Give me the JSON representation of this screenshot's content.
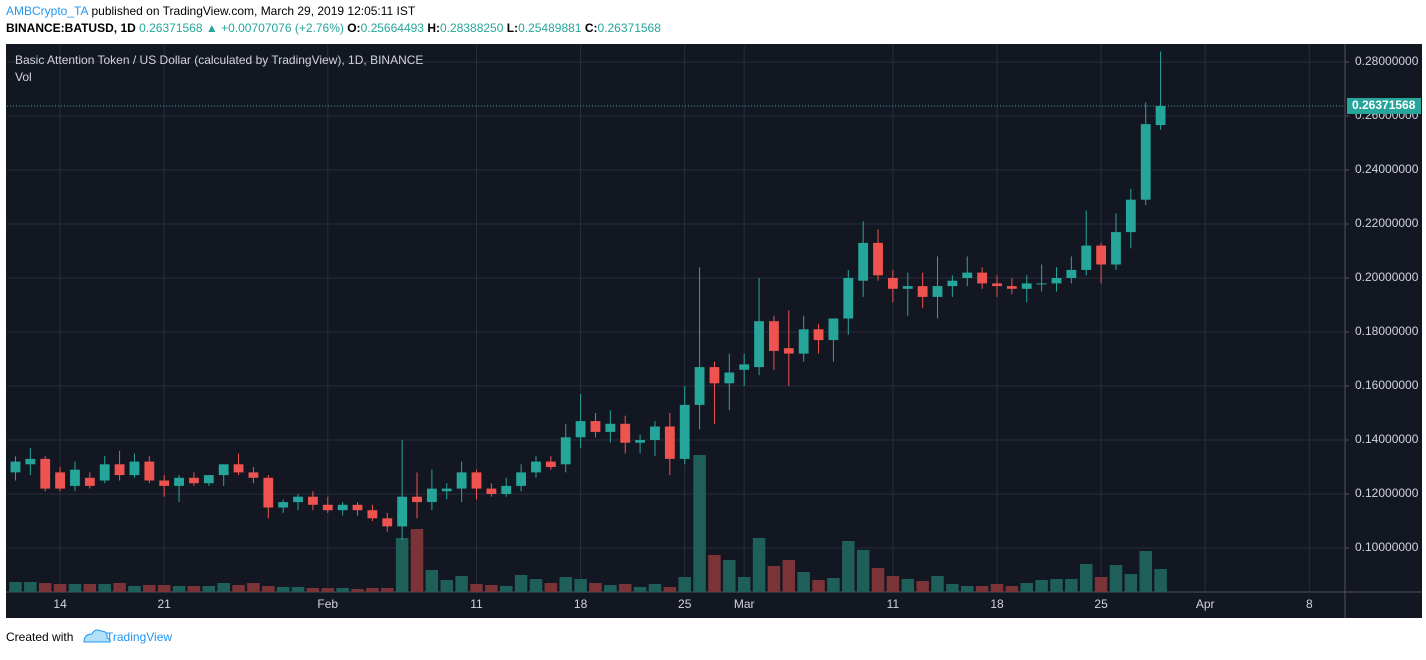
{
  "header": {
    "author": "AMBCrypto_TA",
    "published": "published on TradingView.com, March 29, 2019 12:05:11 IST",
    "symbol": "BINANCE:BATUSD, 1D",
    "price": "0.26371568",
    "arrow": "▲",
    "change": "+0.00707076 (+2.76%)",
    "o_label": "O:",
    "o": "0.25664493",
    "h_label": "H:",
    "h": "0.28388250",
    "l_label": "L:",
    "l": "0.25489881",
    "c_label": "C:",
    "c": "0.26371568"
  },
  "footer": {
    "created": "Created with",
    "brand": "TradingView"
  },
  "chart_data": {
    "type": "candlestick",
    "title": "Basic Attention Token / US Dollar (calculated by TradingView), 1D, BINANCE",
    "volume_label": "Vol",
    "open": [
      0.128,
      0.131,
      0.133,
      0.128,
      0.123,
      0.126,
      0.125,
      0.131,
      0.127,
      0.132,
      0.125,
      0.123,
      0.126,
      0.124,
      0.127,
      0.131,
      0.128,
      0.126,
      0.115,
      0.117,
      0.119,
      0.116,
      0.114,
      0.116,
      0.114,
      0.111,
      0.108,
      0.119,
      0.117,
      0.121,
      0.122,
      0.128,
      0.122,
      0.12,
      0.123,
      0.128,
      0.132,
      0.131,
      0.141,
      0.147,
      0.143,
      0.146,
      0.139,
      0.14,
      0.145,
      0.133,
      0.153,
      0.167,
      0.161,
      0.166,
      0.167,
      0.184,
      0.174,
      0.172,
      0.181,
      0.177,
      0.185,
      0.199,
      0.213,
      0.2,
      0.196,
      0.197,
      0.193,
      0.197,
      0.2,
      0.202,
      0.198,
      0.197,
      0.196,
      0.198,
      0.198,
      0.2,
      0.203,
      0.212,
      0.205,
      0.217,
      0.229,
      0.25664493
    ],
    "high": [
      0.134,
      0.137,
      0.134,
      0.13,
      0.132,
      0.128,
      0.134,
      0.136,
      0.135,
      0.134,
      0.127,
      0.127,
      0.128,
      0.127,
      0.131,
      0.135,
      0.13,
      0.127,
      0.118,
      0.12,
      0.121,
      0.119,
      0.117,
      0.117,
      0.116,
      0.113,
      0.14,
      0.128,
      0.129,
      0.124,
      0.132,
      0.129,
      0.124,
      0.126,
      0.131,
      0.134,
      0.134,
      0.146,
      0.157,
      0.15,
      0.151,
      0.149,
      0.142,
      0.147,
      0.15,
      0.16,
      0.204,
      0.169,
      0.172,
      0.172,
      0.2,
      0.186,
      0.188,
      0.186,
      0.183,
      0.183,
      0.203,
      0.221,
      0.218,
      0.203,
      0.202,
      0.202,
      0.208,
      0.201,
      0.208,
      0.204,
      0.201,
      0.2,
      0.201,
      0.205,
      0.204,
      0.208,
      0.225,
      0.213,
      0.224,
      0.233,
      0.265,
      0.2838825
    ],
    "low": [
      0.125,
      0.127,
      0.121,
      0.121,
      0.121,
      0.122,
      0.124,
      0.125,
      0.126,
      0.124,
      0.119,
      0.117,
      0.123,
      0.123,
      0.123,
      0.127,
      0.124,
      0.111,
      0.113,
      0.114,
      0.114,
      0.113,
      0.112,
      0.112,
      0.11,
      0.106,
      0.103,
      0.111,
      0.114,
      0.118,
      0.117,
      0.118,
      0.119,
      0.119,
      0.121,
      0.126,
      0.129,
      0.128,
      0.137,
      0.141,
      0.139,
      0.135,
      0.135,
      0.134,
      0.127,
      0.131,
      0.144,
      0.146,
      0.151,
      0.16,
      0.164,
      0.166,
      0.16,
      0.169,
      0.172,
      0.169,
      0.179,
      0.193,
      0.199,
      0.191,
      0.186,
      0.189,
      0.185,
      0.193,
      0.197,
      0.196,
      0.193,
      0.194,
      0.191,
      0.195,
      0.195,
      0.198,
      0.201,
      0.198,
      0.203,
      0.211,
      0.227,
      0.25489881
    ],
    "close": [
      0.132,
      0.133,
      0.122,
      0.122,
      0.129,
      0.123,
      0.131,
      0.127,
      0.132,
      0.125,
      0.123,
      0.126,
      0.124,
      0.127,
      0.131,
      0.128,
      0.126,
      0.115,
      0.117,
      0.119,
      0.116,
      0.114,
      0.116,
      0.114,
      0.111,
      0.108,
      0.119,
      0.117,
      0.122,
      0.122,
      0.128,
      0.122,
      0.12,
      0.123,
      0.128,
      0.132,
      0.13,
      0.141,
      0.147,
      0.143,
      0.146,
      0.139,
      0.14,
      0.145,
      0.133,
      0.153,
      0.167,
      0.161,
      0.165,
      0.168,
      0.184,
      0.173,
      0.172,
      0.181,
      0.177,
      0.185,
      0.2,
      0.213,
      0.201,
      0.196,
      0.197,
      0.193,
      0.197,
      0.199,
      0.202,
      0.198,
      0.197,
      0.196,
      0.198,
      0.198,
      0.2,
      0.203,
      0.212,
      0.205,
      0.217,
      0.229,
      0.257,
      0.26371568
    ],
    "volume": [
      10,
      10,
      9,
      8,
      8,
      8,
      8,
      9,
      6,
      7,
      7,
      6,
      6,
      6,
      9,
      7,
      9,
      6,
      5,
      5,
      4,
      4,
      4,
      3,
      4,
      4,
      54,
      63,
      22,
      12,
      16,
      8,
      7,
      6,
      17,
      13,
      9,
      15,
      13,
      9,
      7,
      8,
      5,
      8,
      5,
      15,
      137,
      37,
      32,
      15,
      54,
      26,
      32,
      20,
      12,
      14,
      51,
      42,
      24,
      16,
      13,
      11,
      16,
      8,
      6,
      6,
      8,
      6,
      9,
      12,
      13,
      13,
      28,
      15,
      27,
      18,
      41,
      23
    ],
    "up_color": "#26a69a",
    "down_color": "#ef5350",
    "volume_up_color": "#1f5f5a",
    "volume_down_color": "#7a3437",
    "xlim": [
      -0.57,
      89.4
    ],
    "xticks": [
      {
        "value": 3,
        "label": "14"
      },
      {
        "value": 10,
        "label": "21"
      },
      {
        "value": 21,
        "label": "Feb"
      },
      {
        "value": 31,
        "label": "11"
      },
      {
        "value": 38,
        "label": "18"
      },
      {
        "value": 45,
        "label": "25"
      },
      {
        "value": 49,
        "label": "Mar"
      },
      {
        "value": 59,
        "label": "11"
      },
      {
        "value": 66,
        "label": "18"
      },
      {
        "value": 73,
        "label": "25"
      },
      {
        "value": 80,
        "label": "Apr"
      },
      {
        "value": 87,
        "label": "8"
      }
    ],
    "ylim": [
      0.0837,
      0.2863
    ],
    "yticks": [
      {
        "value": 0.1,
        "label": "0.10000000"
      },
      {
        "value": 0.12,
        "label": "0.12000000"
      },
      {
        "value": 0.14,
        "label": "0.14000000"
      },
      {
        "value": 0.16,
        "label": "0.16000000"
      },
      {
        "value": 0.18,
        "label": "0.18000000"
      },
      {
        "value": 0.2,
        "label": "0.20000000"
      },
      {
        "value": 0.22,
        "label": "0.22000000"
      },
      {
        "value": 0.24,
        "label": "0.24000000"
      },
      {
        "value": 0.26,
        "label": "0.26000000"
      },
      {
        "value": 0.28,
        "label": "0.28000000"
      }
    ],
    "grid": true
  }
}
